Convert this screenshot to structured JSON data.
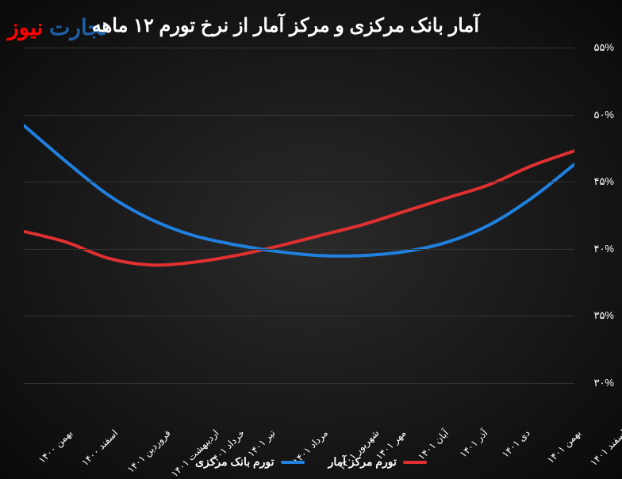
{
  "chart": {
    "type": "line",
    "title": "آمار بانک مرکزی و مرکز آمار از نرخ تورم ۱۲ ماهه",
    "title_fontsize": 24,
    "title_color": "#ffffff",
    "background": "radial-gradient #2a2a2a to #0a0a0a",
    "logo": {
      "text_red": "نیوز",
      "text_blue": "تجارت",
      "color_red": "#ff0000",
      "color_blue": "#1e5fa8"
    },
    "ylim": [
      30,
      55
    ],
    "ytick_step": 5,
    "yticks": [
      {
        "value": 30,
        "label": "۳۰%"
      },
      {
        "value": 35,
        "label": "۳۵%"
      },
      {
        "value": 40,
        "label": "۴۰%"
      },
      {
        "value": 45,
        "label": "۴۵%"
      },
      {
        "value": 50,
        "label": "۵۰%"
      },
      {
        "value": 55,
        "label": "۵۵%"
      }
    ],
    "x_categories": [
      "بهمن ۱۴۰۰",
      "اسفند ۱۴۰۰",
      "فروردین ۱۴۰۱",
      "اردیبهشت ۱۴۰۱",
      "خرداد ۱۴۰۱",
      "تیر ۱۴۰۱",
      "مرداد ۱۴۰۱",
      "شهریور ۱۴۰۱",
      "مهر ۱۴۰۱",
      "آبان ۱۴۰۱",
      "آذر ۱۴۰۱",
      "دی ۱۴۰۱",
      "بهمن ۱۴۰۱",
      "اسفند ۱۴۰۱"
    ],
    "axis_label_fontsize": 12,
    "axis_label_color": "#ffffff",
    "grid_color": "#333333",
    "series": [
      {
        "name": "تورم مرکز آمار",
        "color": "#e03030",
        "line_width": 4,
        "values": [
          41.3,
          40.5,
          39.3,
          38.8,
          39.0,
          39.5,
          40.2,
          41.0,
          41.8,
          42.8,
          43.8,
          44.8,
          46.2,
          47.3
        ]
      },
      {
        "name": "تورم بانک مرکزی",
        "color": "#2080e0",
        "line_width": 4,
        "values": [
          49.2,
          46.5,
          44.0,
          42.2,
          41.0,
          40.3,
          39.8,
          39.5,
          39.5,
          39.8,
          40.5,
          41.8,
          43.8,
          46.3
        ]
      }
    ],
    "legend": {
      "position": "bottom-center",
      "fontsize": 14,
      "item_color": "#ffffff"
    }
  }
}
